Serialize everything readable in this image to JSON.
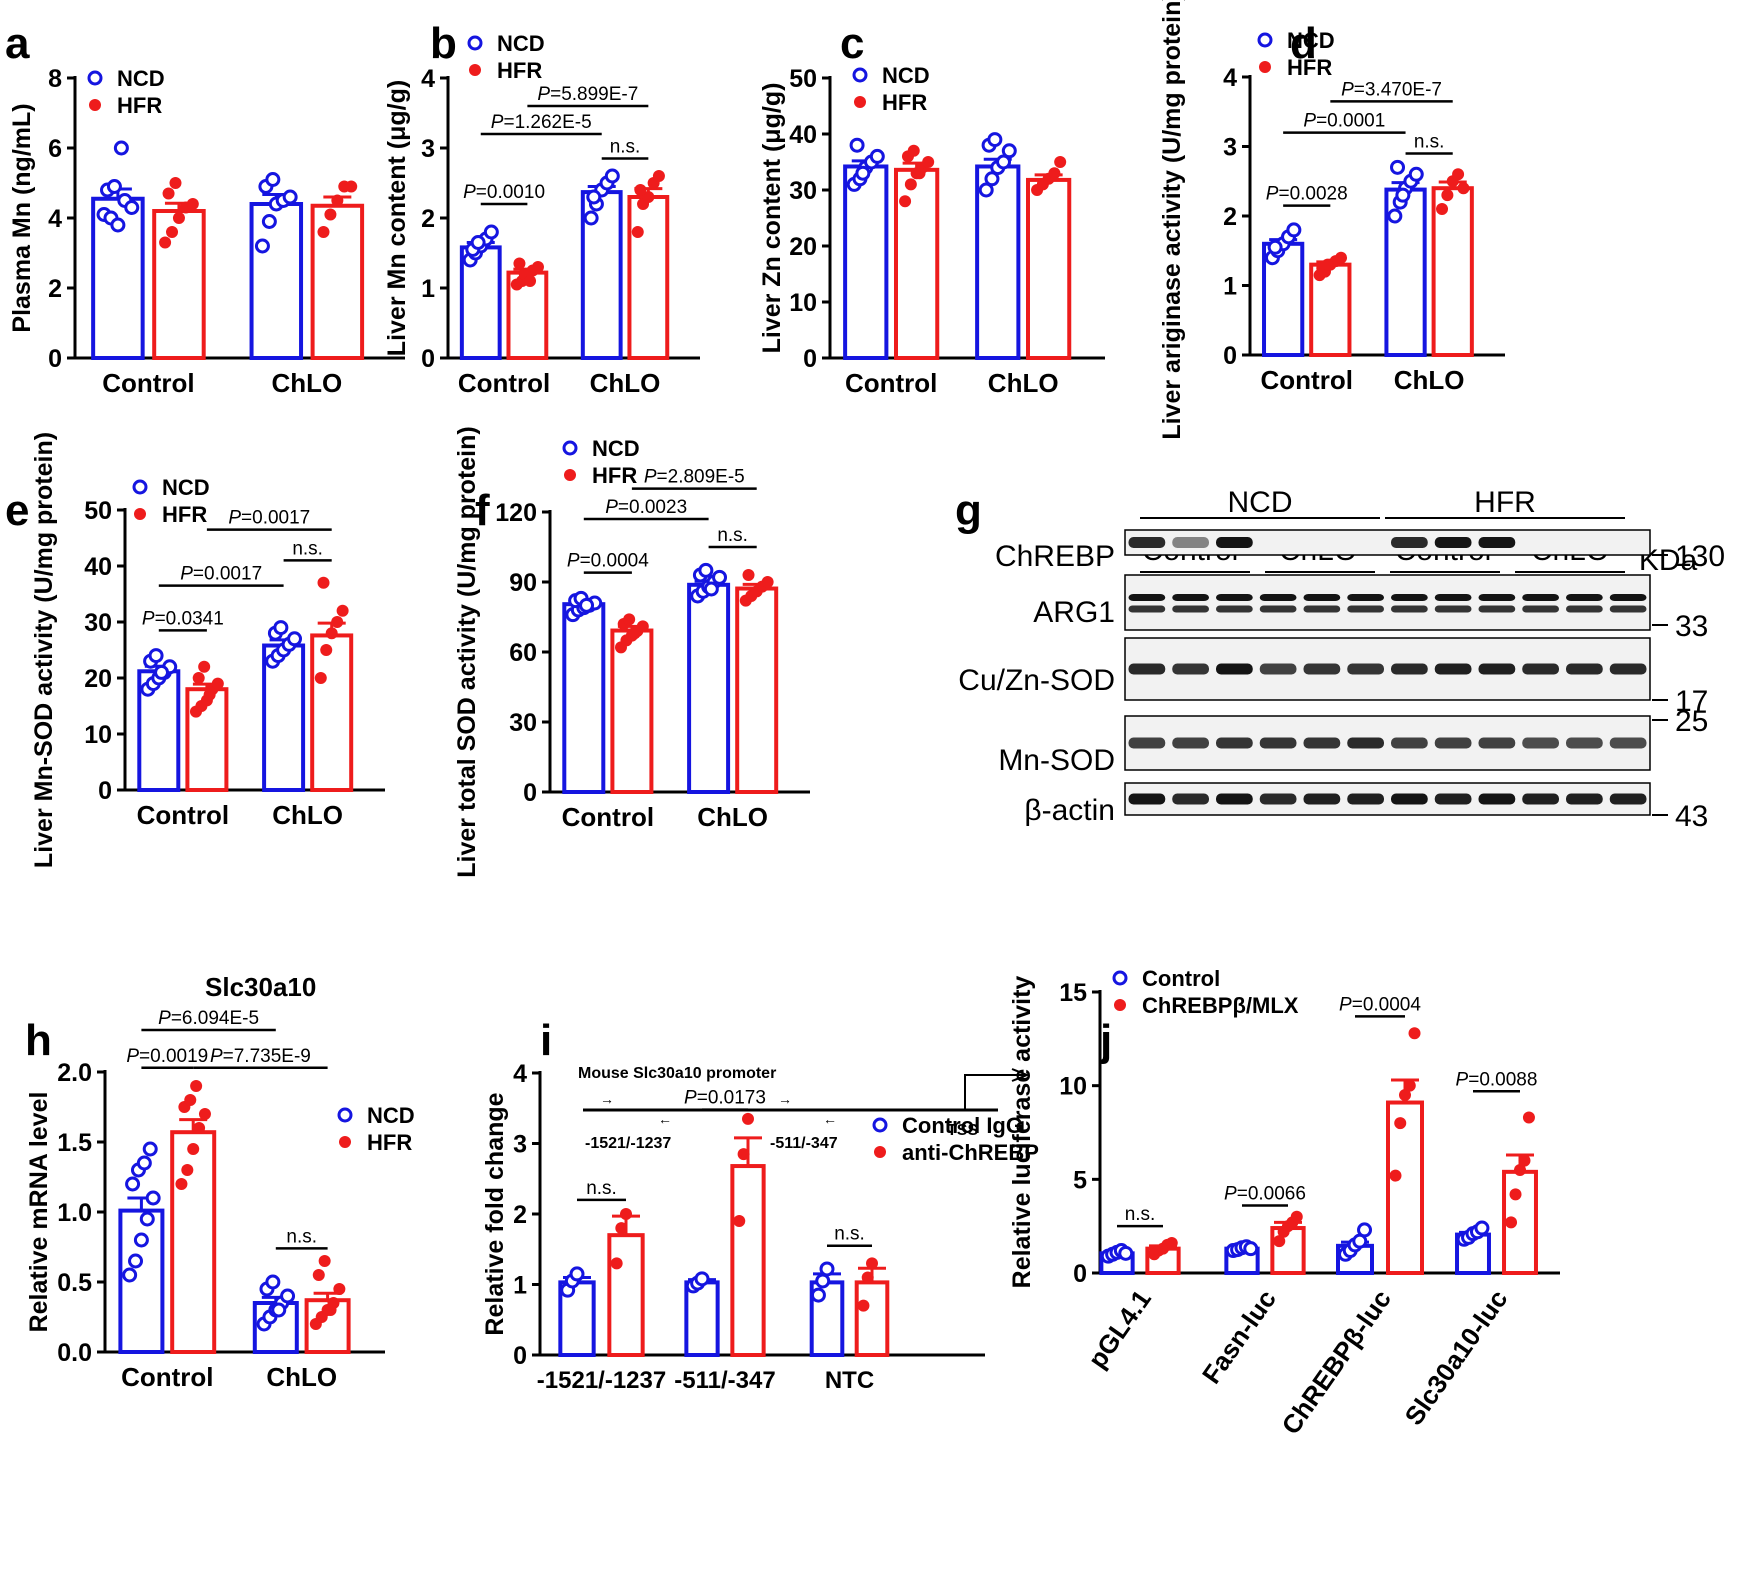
{
  "figure": {
    "labels": [
      "a",
      "b",
      "c",
      "d",
      "e",
      "f",
      "g",
      "h",
      "i",
      "j"
    ]
  },
  "colors": {
    "ncd": "#1515e0",
    "hfr": "#ee1c1c",
    "axis": "#000000",
    "band": "#141414"
  },
  "chart_data": [
    {
      "panel": "a",
      "type": "bar",
      "ylabel": "Plasma Mn (ng/mL)",
      "ylim": [
        0,
        8
      ],
      "yticks": [
        "0",
        "2",
        "4",
        "6",
        "8"
      ],
      "categories": [
        "Control",
        "ChLO"
      ],
      "legend": [
        "NCD",
        "HFR"
      ],
      "series": [
        {
          "name": "NCD",
          "values": [
            4.55,
            4.4
          ],
          "errors": [
            0.28,
            0.27
          ],
          "points": [
            [
              4.1,
              4.0,
              3.8,
              4.5,
              4.3,
              4.8,
              4.9,
              6.0
            ],
            [
              3.2,
              3.9,
              4.4,
              4.5,
              4.6,
              4.9,
              5.1
            ]
          ]
        },
        {
          "name": "HFR",
          "values": [
            4.2,
            4.35
          ],
          "errors": [
            0.22,
            0.25
          ],
          "points": [
            [
              3.3,
              3.6,
              4.0,
              4.3,
              4.4,
              4.7,
              5.0
            ],
            [
              3.6,
              4.1,
              4.5,
              4.9,
              4.9
            ]
          ]
        }
      ],
      "brackets": []
    },
    {
      "panel": "b",
      "type": "bar",
      "ylabel": "Liver Mn content (μg/g)",
      "ylim": [
        0,
        4
      ],
      "yticks": [
        "0",
        "1",
        "2",
        "3",
        "4"
      ],
      "categories": [
        "Control",
        "ChLO"
      ],
      "legend": [
        "NCD",
        "HFR"
      ],
      "series": [
        {
          "name": "NCD",
          "values": [
            1.58,
            2.37
          ],
          "errors": [
            0.07,
            0.08
          ],
          "points": [
            [
              1.4,
              1.5,
              1.6,
              1.7,
              1.8,
              1.55,
              1.65
            ],
            [
              2.0,
              2.2,
              2.4,
              2.5,
              2.6,
              2.3
            ]
          ]
        },
        {
          "name": "HFR",
          "values": [
            1.22,
            2.3
          ],
          "errors": [
            0.05,
            0.12
          ],
          "points": [
            [
              1.05,
              1.1,
              1.15,
              1.25,
              1.3,
              1.35,
              1.2,
              1.1
            ],
            [
              1.8,
              2.2,
              2.3,
              2.5,
              2.6,
              2.4
            ]
          ]
        }
      ],
      "brackets": [
        {
          "from": "NCD-Control",
          "to": "HFR-Control",
          "label": "=0.0010",
          "pv": "P",
          "level": 2.2
        },
        {
          "from": "NCD-Control",
          "to": "NCD-ChLO",
          "label": "=1.262E-5",
          "pv": "P",
          "level": 3.2
        },
        {
          "from": "HFR-Control",
          "to": "HFR-ChLO",
          "label": "=5.899E-7",
          "pv": "P",
          "level": 3.6
        },
        {
          "from": "NCD-ChLO",
          "to": "HFR-ChLO",
          "label": "n.s.",
          "pv": "",
          "level": 2.85
        }
      ]
    },
    {
      "panel": "c",
      "type": "bar",
      "ylabel": "Liver Zn content (μg/g)",
      "ylim": [
        0,
        50
      ],
      "yticks": [
        "0",
        "10",
        "20",
        "30",
        "40",
        "50"
      ],
      "categories": [
        "Control",
        "ChLO"
      ],
      "legend": [
        "NCD",
        "HFR"
      ],
      "series": [
        {
          "name": "NCD",
          "values": [
            34.2,
            34.2
          ],
          "errors": [
            1.0,
            1.3
          ],
          "points": [
            [
              31,
              32,
              34,
              35,
              36,
              38,
              33
            ],
            [
              30,
              32,
              34,
              35,
              37,
              38,
              39
            ]
          ]
        },
        {
          "name": "HFR",
          "values": [
            33.6,
            31.8
          ],
          "errors": [
            1.2,
            0.9
          ],
          "points": [
            [
              28,
              31,
              33,
              34,
              35,
              36,
              37,
              33
            ],
            [
              30,
              31,
              32,
              33,
              35
            ]
          ]
        }
      ],
      "brackets": []
    },
    {
      "panel": "d",
      "type": "bar",
      "ylabel": "Liver ariginase activity (U/mg protein)",
      "ylim": [
        0,
        4
      ],
      "yticks": [
        "0",
        "1",
        "2",
        "3",
        "4"
      ],
      "categories": [
        "Control",
        "ChLO"
      ],
      "legend": [
        "NCD",
        "HFR"
      ],
      "series": [
        {
          "name": "NCD",
          "values": [
            1.6,
            2.38
          ],
          "errors": [
            0.06,
            0.1
          ],
          "points": [
            [
              1.4,
              1.5,
              1.6,
              1.7,
              1.8,
              1.55
            ],
            [
              2.0,
              2.2,
              2.4,
              2.5,
              2.6,
              2.7,
              2.3
            ]
          ]
        },
        {
          "name": "HFR",
          "values": [
            1.3,
            2.4
          ],
          "errors": [
            0.04,
            0.09
          ],
          "points": [
            [
              1.15,
              1.2,
              1.3,
              1.35,
              1.4,
              1.25,
              1.3
            ],
            [
              2.1,
              2.3,
              2.5,
              2.6,
              2.4
            ]
          ]
        }
      ],
      "brackets": [
        {
          "from": "NCD-Control",
          "to": "HFR-Control",
          "label": "=0.0028",
          "pv": "P",
          "level": 2.15
        },
        {
          "from": "NCD-Control",
          "to": "NCD-ChLO",
          "label": "=0.0001",
          "pv": "P",
          "level": 3.2
        },
        {
          "from": "HFR-Control",
          "to": "HFR-ChLO",
          "label": "=3.470E-7",
          "pv": "P",
          "level": 3.65
        },
        {
          "from": "NCD-ChLO",
          "to": "HFR-ChLO",
          "label": "n.s.",
          "pv": "",
          "level": 2.9
        }
      ]
    },
    {
      "panel": "e",
      "type": "bar",
      "ylabel": "Liver Mn-SOD activity (U/mg protein)",
      "ylim": [
        0,
        50
      ],
      "yticks": [
        "0",
        "10",
        "20",
        "30",
        "40",
        "50"
      ],
      "categories": [
        "Control",
        "ChLO"
      ],
      "legend": [
        "NCD",
        "HFR"
      ],
      "series": [
        {
          "name": "NCD",
          "values": [
            21.2,
            25.8
          ],
          "errors": [
            0.9,
            1.0
          ],
          "points": [
            [
              18,
              19,
              20,
              21,
              22,
              23,
              24,
              21
            ],
            [
              23,
              24,
              25,
              26,
              27,
              28,
              29
            ]
          ]
        },
        {
          "name": "HFR",
          "values": [
            18.0,
            27.6
          ],
          "errors": [
            0.9,
            2.2
          ],
          "points": [
            [
              14,
              15,
              16,
              18,
              19,
              20,
              22,
              17
            ],
            [
              20,
              25,
              28,
              30,
              32,
              37
            ]
          ]
        }
      ],
      "brackets": [
        {
          "from": "NCD-Control",
          "to": "HFR-Control",
          "label": "=0.0341",
          "pv": "P",
          "level": 28.5
        },
        {
          "from": "NCD-Control",
          "to": "NCD-ChLO",
          "label": "=0.0017",
          "pv": "P",
          "level": 36.5
        },
        {
          "from": "HFR-Control",
          "to": "HFR-ChLO",
          "label": "=0.0017",
          "pv": "P",
          "level": 46.5
        },
        {
          "from": "NCD-ChLO",
          "to": "HFR-ChLO",
          "label": "n.s.",
          "pv": "",
          "level": 41
        }
      ]
    },
    {
      "panel": "f",
      "type": "bar",
      "ylabel": "Liver total SOD activity (U/mg protein)",
      "ylim": [
        0,
        120
      ],
      "yticks": [
        "0",
        "30",
        "60",
        "90",
        "120"
      ],
      "categories": [
        "Control",
        "ChLO"
      ],
      "legend": [
        "NCD",
        "HFR"
      ],
      "series": [
        {
          "name": "NCD",
          "values": [
            80.5,
            88.8
          ],
          "errors": [
            1.2,
            1.5
          ],
          "points": [
            [
              76,
              78,
              79,
              80,
              81,
              82,
              83,
              80
            ],
            [
              84,
              86,
              88,
              90,
              92,
              93,
              95,
              87
            ]
          ]
        },
        {
          "name": "HFR",
          "values": [
            69.2,
            87.2
          ],
          "errors": [
            1.8,
            1.8
          ],
          "points": [
            [
              62,
              65,
              67,
              69,
              71,
              72,
              74,
              68
            ],
            [
              82,
              84,
              86,
              88,
              90,
              93
            ]
          ]
        }
      ],
      "brackets": [
        {
          "from": "NCD-Control",
          "to": "HFR-Control",
          "label": "=0.0004",
          "pv": "P",
          "level": 94
        },
        {
          "from": "NCD-Control",
          "to": "NCD-ChLO",
          "label": "=0.0023",
          "pv": "P",
          "level": 117
        },
        {
          "from": "HFR-Control",
          "to": "HFR-ChLO",
          "label": "=2.809E-5",
          "pv": "P",
          "level": 130
        },
        {
          "from": "NCD-ChLO",
          "to": "HFR-ChLO",
          "label": "n.s.",
          "pv": "",
          "level": 105
        }
      ]
    },
    {
      "panel": "h",
      "type": "bar",
      "title": "Slc30a10",
      "ylabel": "Relative mRNA  level",
      "ylim": [
        0,
        2.0
      ],
      "yticks": [
        "0.0",
        "0.5",
        "1.0",
        "1.5",
        "2.0"
      ],
      "categories": [
        "Control",
        "ChLO"
      ],
      "legend": [
        "NCD",
        "HFR"
      ],
      "series": [
        {
          "name": "NCD",
          "values": [
            1.01,
            0.35
          ],
          "errors": [
            0.09,
            0.04
          ],
          "points": [
            [
              0.55,
              0.65,
              0.8,
              0.95,
              1.1,
              1.2,
              1.3,
              1.35,
              1.45
            ],
            [
              0.2,
              0.25,
              0.3,
              0.35,
              0.4,
              0.45,
              0.5,
              0.3
            ]
          ]
        },
        {
          "name": "HFR",
          "values": [
            1.57,
            0.37
          ],
          "errors": [
            0.09,
            0.05
          ],
          "points": [
            [
              1.2,
              1.3,
              1.45,
              1.6,
              1.7,
              1.75,
              1.8,
              1.9
            ],
            [
              0.2,
              0.25,
              0.3,
              0.35,
              0.45,
              0.55,
              0.65,
              0.3
            ]
          ]
        }
      ],
      "brackets": [
        {
          "from": "NCD-Control",
          "to": "HFR-Control",
          "label": "=0.0019",
          "pv": "P",
          "level": 2.03
        },
        {
          "from": "NCD-Control",
          "to": "NCD-ChLO",
          "label": "=6.094E-5",
          "pv": "P",
          "level": 2.3
        },
        {
          "from": "HFR-Control",
          "to": "HFR-ChLO",
          "label": "=7.735E-9",
          "pv": "P",
          "level": 2.03
        },
        {
          "from": "NCD-ChLO",
          "to": "HFR-ChLO",
          "label": "n.s.",
          "pv": "",
          "level": 0.74
        }
      ]
    },
    {
      "panel": "i",
      "type": "bar",
      "ylabel": "Relative fold change",
      "ylim": [
        0,
        4
      ],
      "yticks": [
        "0",
        "1",
        "2",
        "3",
        "4"
      ],
      "categories": [
        "-1521/-1237",
        "-511/-347",
        "NTC"
      ],
      "legend": [
        "Control IgG",
        "anti-ChREBP"
      ],
      "series": [
        {
          "name": "Control IgG",
          "values": [
            1.03,
            1.03,
            1.03
          ],
          "errors": [
            0.07,
            0.04,
            0.12
          ],
          "points": [
            [
              0.92,
              1.05,
              1.15
            ],
            [
              0.98,
              1.02,
              1.08
            ],
            [
              0.85,
              1.05,
              1.22
            ]
          ]
        },
        {
          "name": "anti-ChREBP",
          "values": [
            1.7,
            2.68,
            1.03
          ],
          "errors": [
            0.27,
            0.4,
            0.2
          ],
          "points": [
            [
              1.3,
              1.8,
              2.0
            ],
            [
              1.9,
              2.85,
              3.35
            ],
            [
              0.7,
              1.1,
              1.3
            ]
          ]
        }
      ],
      "brackets": [
        {
          "from": "c0",
          "to": "c0",
          "label": "n.s.",
          "pv": "",
          "level": 2.2
        },
        {
          "from": "c1",
          "to": "c1",
          "label": "=0.0173",
          "pv": "P",
          "level": 3.48
        },
        {
          "from": "c2",
          "to": "c2",
          "label": "n.s.",
          "pv": "",
          "level": 1.55
        }
      ]
    },
    {
      "panel": "j",
      "type": "bar",
      "ylabel": "Relative luciferase activity",
      "ylim": [
        0,
        15
      ],
      "yticks": [
        "0",
        "5",
        "10",
        "15"
      ],
      "categories": [
        "pGL4.1",
        "Fasn-luc",
        "ChREBPβ-luc",
        "Slc30a10-luc"
      ],
      "legend": [
        "Control",
        "ChREBPβ/MLX"
      ],
      "series": [
        {
          "name": "Control",
          "values": [
            1.05,
            1.3,
            1.45,
            2.05
          ],
          "errors": [
            0.07,
            0.06,
            0.2,
            0.12
          ],
          "points": [
            [
              0.9,
              1.0,
              1.1,
              1.2,
              1.05
            ],
            [
              1.2,
              1.25,
              1.35,
              1.4,
              1.3
            ],
            [
              1.0,
              1.2,
              1.5,
              1.7,
              2.3
            ],
            [
              1.8,
              1.9,
              2.1,
              2.2,
              2.4
            ]
          ]
        },
        {
          "name": "ChREBPβ/MLX",
          "values": [
            1.3,
            2.4,
            9.1,
            5.4
          ],
          "errors": [
            0.15,
            0.3,
            1.2,
            0.9
          ],
          "points": [
            [
              1.0,
              1.2,
              1.3,
              1.5,
              1.6
            ],
            [
              1.7,
              2.2,
              2.5,
              2.7,
              3.0
            ],
            [
              5.2,
              8.0,
              9.5,
              10.0,
              12.8
            ],
            [
              2.7,
              4.2,
              5.5,
              6.0,
              8.3
            ]
          ]
        }
      ],
      "brackets": [
        {
          "from": "c0",
          "to": "c0",
          "label": "n.s.",
          "pv": "",
          "level": 2.5
        },
        {
          "from": "c1",
          "to": "c1",
          "label": "=0.0066",
          "pv": "P",
          "level": 3.6
        },
        {
          "from": "c2",
          "to": "c2",
          "label": "=0.0004",
          "pv": "P",
          "level": 13.7
        },
        {
          "from": "c3",
          "to": "c3",
          "label": "=0.0088",
          "pv": "P",
          "level": 9.7
        }
      ]
    }
  ],
  "blot": {
    "groups": [
      "NCD",
      "HFR"
    ],
    "subgroups": [
      "Control",
      "ChLO",
      "Control",
      "ChLO"
    ],
    "kda_label": "KDa",
    "proteins": [
      "ChREBP",
      "ARG1",
      "Cu/Zn-SOD",
      "Mn-SOD",
      "β-actin"
    ],
    "markers": [
      "130",
      "33",
      "17",
      "25",
      "43"
    ]
  },
  "promoter": {
    "title": "Mouse Slc30a10 promoter",
    "regions": [
      "-1521/-1237",
      "-511/-347"
    ],
    "tss": "TSS"
  }
}
